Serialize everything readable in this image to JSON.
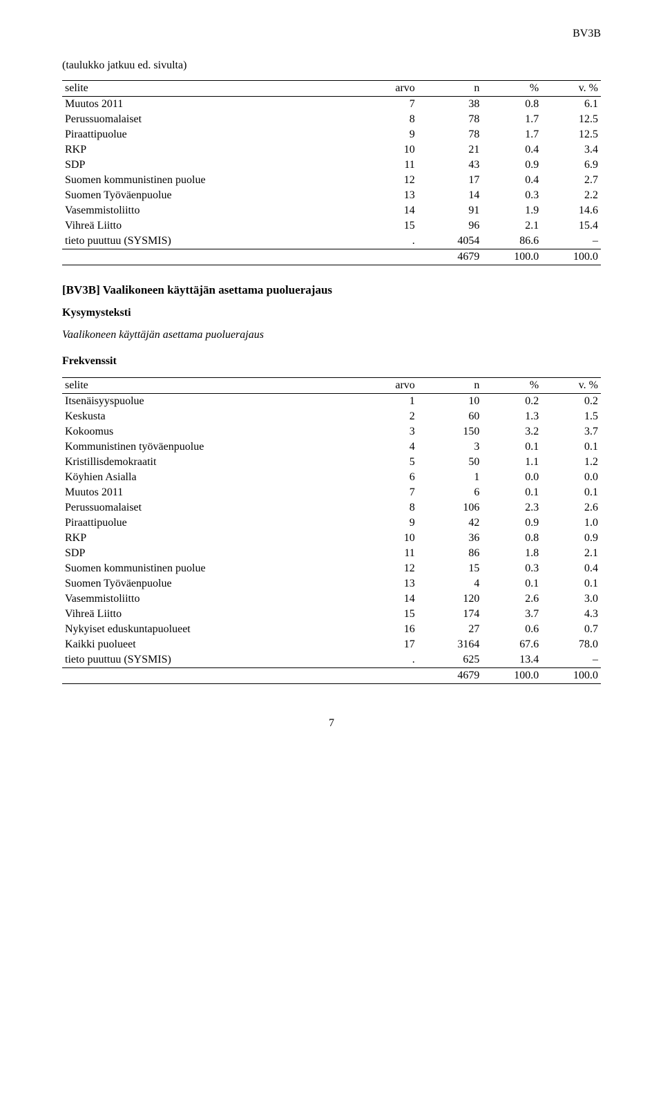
{
  "header": {
    "right_label": "BV3B"
  },
  "continuation_note": "(taulukko jatkuu ed. sivulta)",
  "table1": {
    "columns": {
      "selite": "selite",
      "arvo": "arvo",
      "n": "n",
      "pct": "%",
      "vpct": "v. %"
    },
    "rows": [
      {
        "selite": "Muutos 2011",
        "arvo": "7",
        "n": "38",
        "pct": "0.8",
        "vpct": "6.1"
      },
      {
        "selite": "Perussuomalaiset",
        "arvo": "8",
        "n": "78",
        "pct": "1.7",
        "vpct": "12.5"
      },
      {
        "selite": "Piraattipuolue",
        "arvo": "9",
        "n": "78",
        "pct": "1.7",
        "vpct": "12.5"
      },
      {
        "selite": "RKP",
        "arvo": "10",
        "n": "21",
        "pct": "0.4",
        "vpct": "3.4"
      },
      {
        "selite": "SDP",
        "arvo": "11",
        "n": "43",
        "pct": "0.9",
        "vpct": "6.9"
      },
      {
        "selite": "Suomen kommunistinen puolue",
        "arvo": "12",
        "n": "17",
        "pct": "0.4",
        "vpct": "2.7"
      },
      {
        "selite": "Suomen Työväenpuolue",
        "arvo": "13",
        "n": "14",
        "pct": "0.3",
        "vpct": "2.2"
      },
      {
        "selite": "Vasemmistoliitto",
        "arvo": "14",
        "n": "91",
        "pct": "1.9",
        "vpct": "14.6"
      },
      {
        "selite": "Vihreä Liitto",
        "arvo": "15",
        "n": "96",
        "pct": "2.1",
        "vpct": "15.4"
      },
      {
        "selite": "tieto puuttuu (SYSMIS)",
        "arvo": ".",
        "n": "4054",
        "pct": "86.6",
        "vpct": "–"
      }
    ],
    "total": {
      "selite": "",
      "arvo": "",
      "n": "4679",
      "pct": "100.0",
      "vpct": "100.0"
    }
  },
  "section": {
    "title": "[BV3B] Vaalikoneen käyttäjän asettama puoluerajaus",
    "kysymys_label": "Kysymysteksti",
    "kysymys_text": "Vaalikoneen käyttäjän asettama puoluerajaus",
    "frekvenssit_label": "Frekvenssit"
  },
  "table2": {
    "columns": {
      "selite": "selite",
      "arvo": "arvo",
      "n": "n",
      "pct": "%",
      "vpct": "v. %"
    },
    "rows": [
      {
        "selite": "Itsenäisyyspuolue",
        "arvo": "1",
        "n": "10",
        "pct": "0.2",
        "vpct": "0.2"
      },
      {
        "selite": "Keskusta",
        "arvo": "2",
        "n": "60",
        "pct": "1.3",
        "vpct": "1.5"
      },
      {
        "selite": "Kokoomus",
        "arvo": "3",
        "n": "150",
        "pct": "3.2",
        "vpct": "3.7"
      },
      {
        "selite": "Kommunistinen työväenpuolue",
        "arvo": "4",
        "n": "3",
        "pct": "0.1",
        "vpct": "0.1"
      },
      {
        "selite": "Kristillisdemokraatit",
        "arvo": "5",
        "n": "50",
        "pct": "1.1",
        "vpct": "1.2"
      },
      {
        "selite": "Köyhien Asialla",
        "arvo": "6",
        "n": "1",
        "pct": "0.0",
        "vpct": "0.0"
      },
      {
        "selite": "Muutos 2011",
        "arvo": "7",
        "n": "6",
        "pct": "0.1",
        "vpct": "0.1"
      },
      {
        "selite": "Perussuomalaiset",
        "arvo": "8",
        "n": "106",
        "pct": "2.3",
        "vpct": "2.6"
      },
      {
        "selite": "Piraattipuolue",
        "arvo": "9",
        "n": "42",
        "pct": "0.9",
        "vpct": "1.0"
      },
      {
        "selite": "RKP",
        "arvo": "10",
        "n": "36",
        "pct": "0.8",
        "vpct": "0.9"
      },
      {
        "selite": "SDP",
        "arvo": "11",
        "n": "86",
        "pct": "1.8",
        "vpct": "2.1"
      },
      {
        "selite": "Suomen kommunistinen puolue",
        "arvo": "12",
        "n": "15",
        "pct": "0.3",
        "vpct": "0.4"
      },
      {
        "selite": "Suomen Työväenpuolue",
        "arvo": "13",
        "n": "4",
        "pct": "0.1",
        "vpct": "0.1"
      },
      {
        "selite": "Vasemmistoliitto",
        "arvo": "14",
        "n": "120",
        "pct": "2.6",
        "vpct": "3.0"
      },
      {
        "selite": "Vihreä Liitto",
        "arvo": "15",
        "n": "174",
        "pct": "3.7",
        "vpct": "4.3"
      },
      {
        "selite": "Nykyiset eduskuntapuolueet",
        "arvo": "16",
        "n": "27",
        "pct": "0.6",
        "vpct": "0.7"
      },
      {
        "selite": "Kaikki puolueet",
        "arvo": "17",
        "n": "3164",
        "pct": "67.6",
        "vpct": "78.0"
      },
      {
        "selite": "tieto puuttuu (SYSMIS)",
        "arvo": ".",
        "n": "625",
        "pct": "13.4",
        "vpct": "–"
      }
    ],
    "total": {
      "selite": "",
      "arvo": "",
      "n": "4679",
      "pct": "100.0",
      "vpct": "100.0"
    }
  },
  "page_number": "7"
}
